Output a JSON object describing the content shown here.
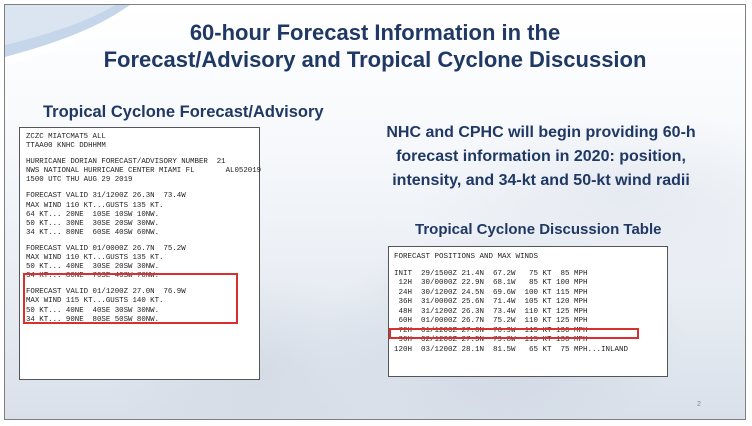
{
  "slide": {
    "title_line1": "60-hour Forecast Information in the",
    "title_line2": "Forecast/Advisory and Tropical Cyclone Discussion",
    "left_heading": "Tropical Cyclone Forecast/Advisory",
    "nhc_text": [
      "NHC and CPHC will begin providing 60-h",
      "forecast information in 2020: position,",
      "intensity, and 34-kt and 50-kt wind radii"
    ],
    "right_heading": "Tropical Cyclone Discussion Table",
    "page_number": "2",
    "highlight_color": "#d7302f",
    "title_color": "#1f3864"
  },
  "advisory": {
    "header": [
      "ZCZC MIATCMAT5 ALL",
      "TTAA00 KNHC DDHHMM"
    ],
    "info": [
      "HURRICANE DORIAN FORECAST/ADVISORY NUMBER  21",
      "NWS NATIONAL HURRICANE CENTER MIAMI FL       AL052019",
      "1500 UTC THU AUG 29 2019"
    ],
    "block1": [
      "FORECAST VALID 31/1200Z 26.3N  73.4W",
      "MAX WIND 110 KT...GUSTS 135 KT.",
      "64 KT... 20NE  10SE 10SW 10NW.",
      "50 KT... 30NE  30SE 20SW 30NW.",
      "34 KT... 80NE  60SE 40SW 60NW."
    ],
    "block2": [
      "FORECAST VALID 01/0000Z 26.7N  75.2W",
      "MAX WIND 110 KT...GUSTS 135 KT.",
      "50 KT... 40NE  30SE 20SW 30NW.",
      "34 KT... 80NE  70SE 40SW 70NW."
    ],
    "block3": [
      "FORECAST VALID 01/1200Z 27.0N  76.9W",
      "MAX WIND 115 KT...GUSTS 140 KT.",
      "50 KT... 40NE  40SE 30SW 30NW.",
      "34 KT... 90NE  80SE 50SW 80NW."
    ]
  },
  "discussion": {
    "header": "FORECAST POSITIONS AND MAX WINDS",
    "rows": [
      "INIT  29/1500Z 21.4N  67.2W   75 KT  85 MPH",
      " 12H  30/0000Z 22.9N  68.1W   85 KT 100 MPH",
      " 24H  30/1200Z 24.5N  69.6W  100 KT 115 MPH",
      " 36H  31/0000Z 25.6N  71.4W  105 KT 120 MPH",
      " 48H  31/1200Z 26.3N  73.4W  110 KT 125 MPH",
      " 60H  01/0000Z 26.7N  75.2W  110 KT 125 MPH",
      " 72H  01/1200Z 27.0N  76.9W  115 KT 130 MPH",
      " 96H  02/1200Z 27.5N  79.8W  115 KT 130 MPH",
      "120H  03/1200Z 28.1N  81.5W   65 KT  75 MPH...INLAND"
    ]
  }
}
